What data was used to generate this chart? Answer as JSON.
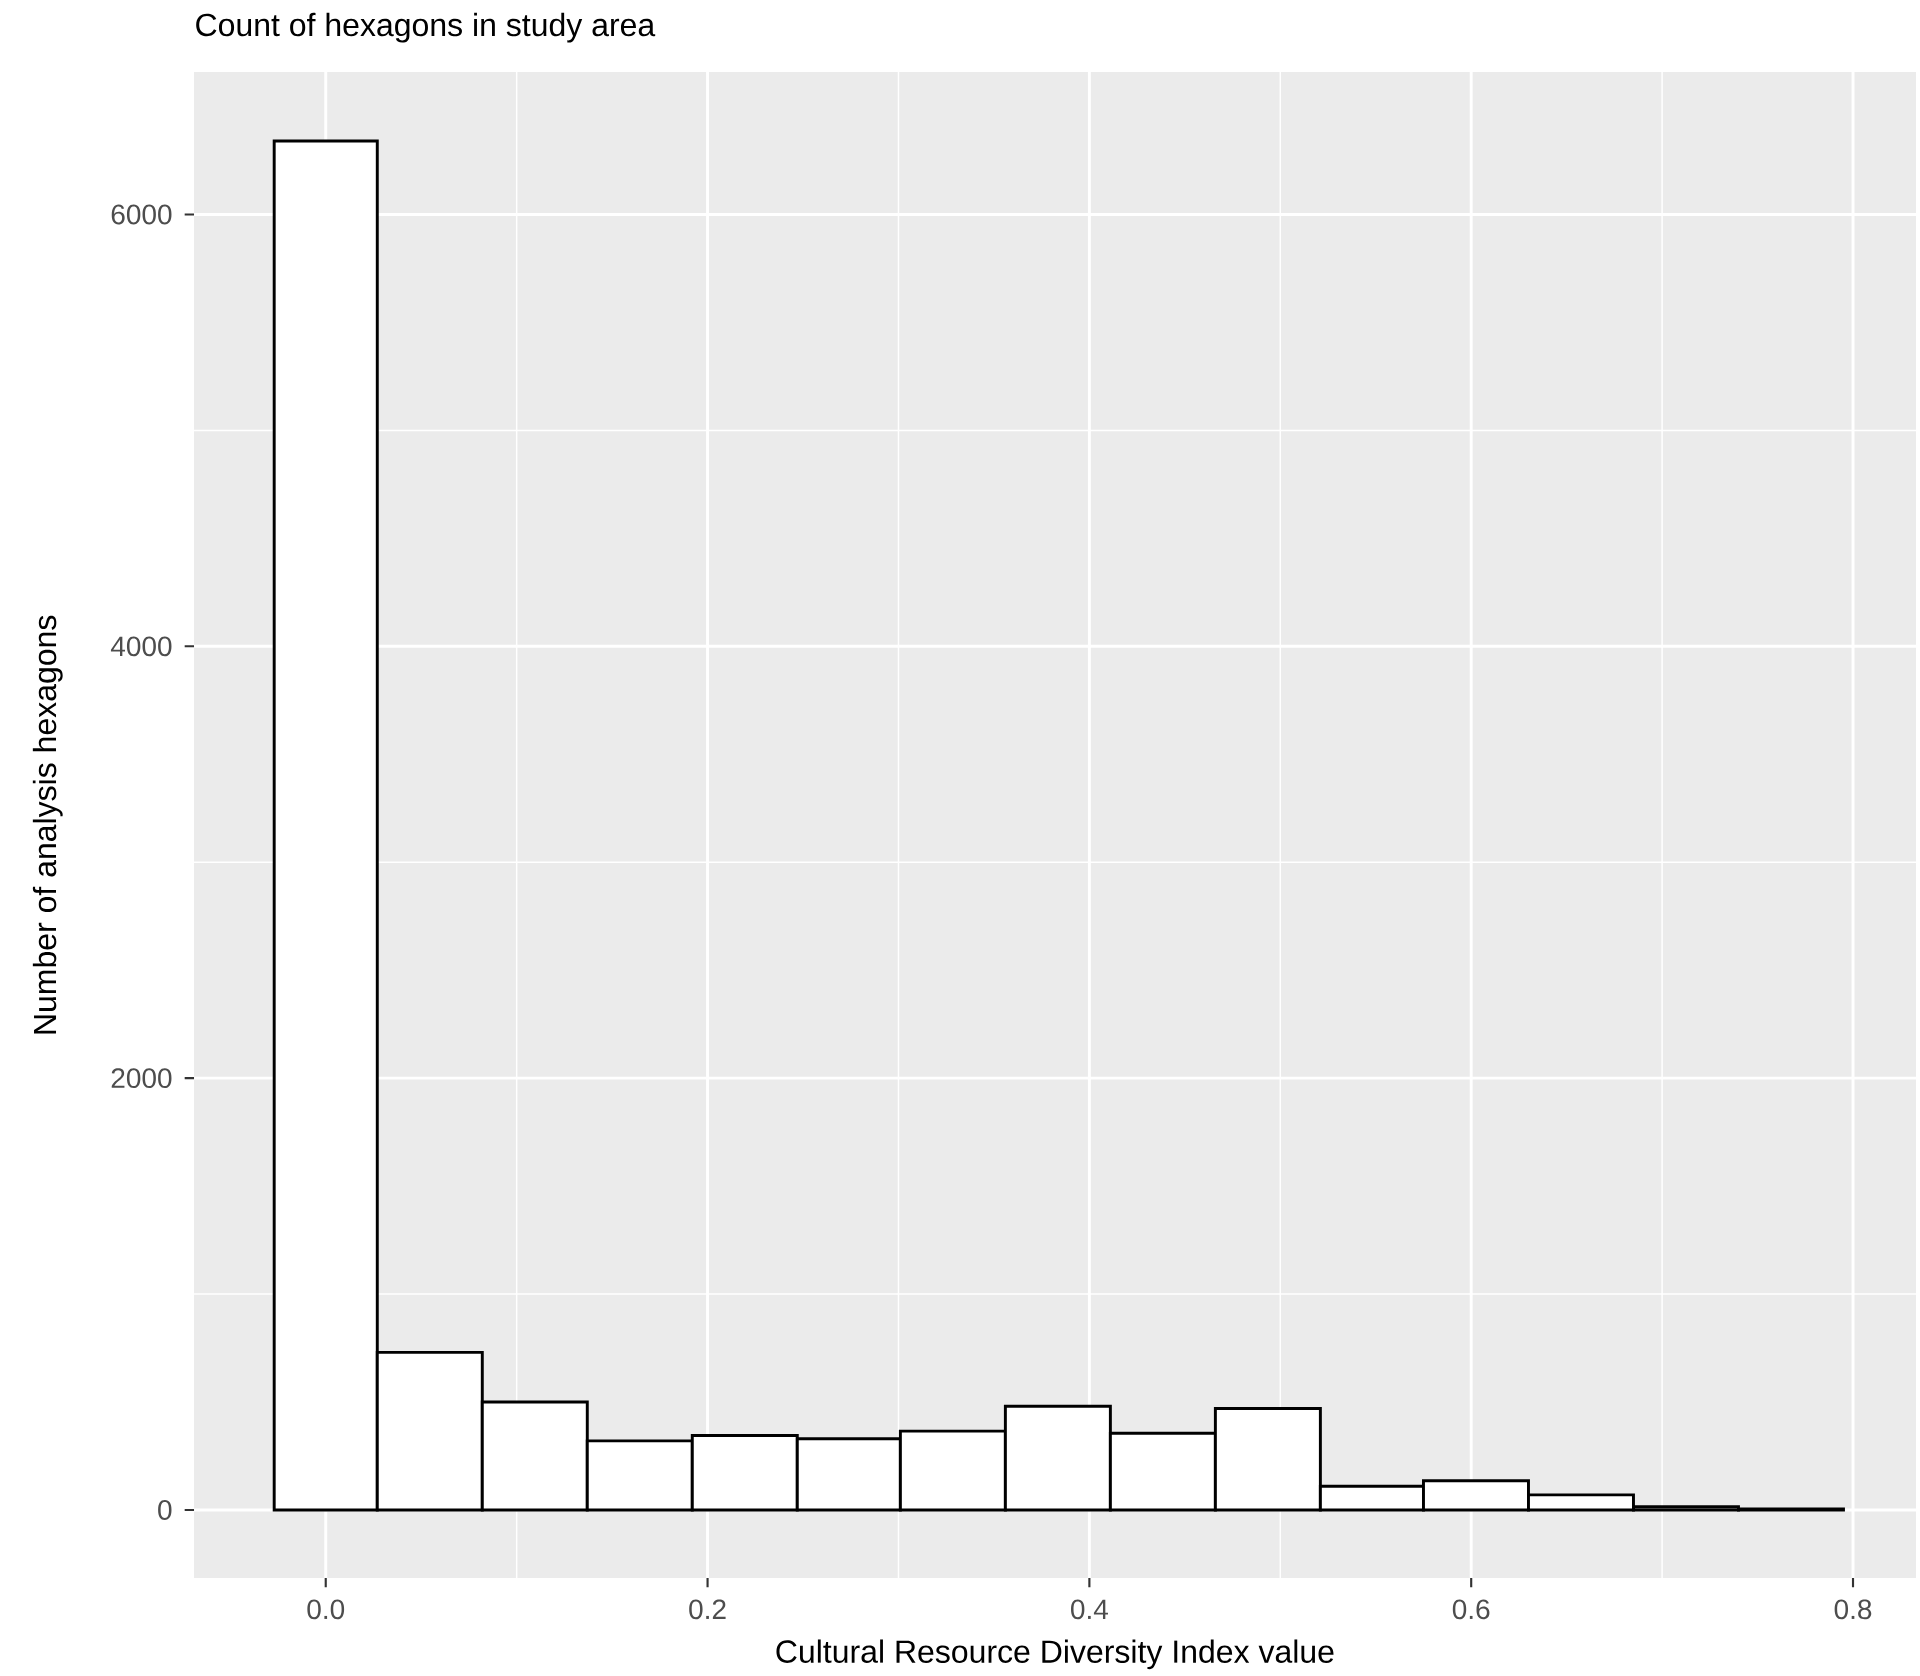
{
  "chart_data": {
    "type": "histogram",
    "title": "Count of hexagons in study area",
    "xlabel": "Cultural Resource Diversity Index value",
    "ylabel": "Number of analysis hexagons",
    "bins": [
      -0.027,
      0.027,
      0.082,
      0.137,
      0.192,
      0.247,
      0.301,
      0.356,
      0.411,
      0.466,
      0.521,
      0.575,
      0.63,
      0.685,
      0.74,
      0.795
    ],
    "values": [
      6340,
      730,
      500,
      320,
      345,
      330,
      365,
      480,
      355,
      470,
      110,
      135,
      70,
      15,
      5
    ],
    "color": "#ffffff",
    "xlim": [
      -0.069,
      0.833
    ],
    "ylim": [
      -315,
      6660
    ],
    "xticks": [
      {
        "value": 0,
        "label": "0.0"
      },
      0.2,
      0.4,
      0.6,
      0.8
    ],
    "yticks": [
      0,
      2000,
      4000,
      6000
    ],
    "grid": true
  }
}
